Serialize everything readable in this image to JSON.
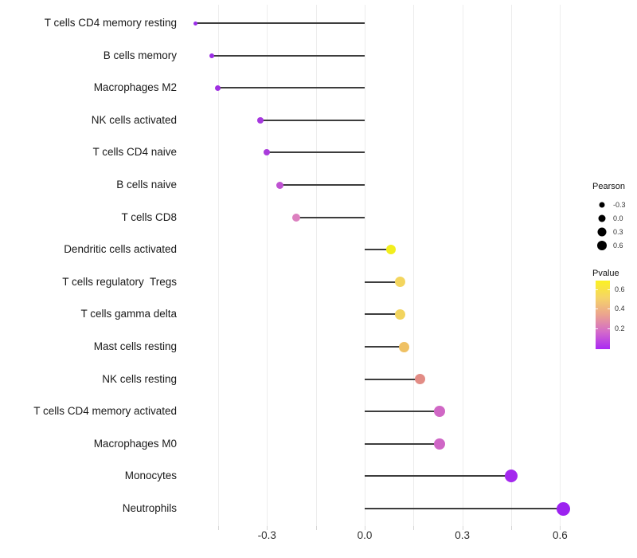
{
  "figure": {
    "background": "#ffffff",
    "stem_color": "#3d3d3d",
    "grid_color": "#ededed",
    "text_color": "#333333"
  },
  "chart_data": {
    "type": "scatter",
    "variant": "lollipop",
    "title": "",
    "xlabel": "",
    "ylabel": "",
    "xlim": [
      -0.56,
      0.69
    ],
    "grid": "vertical-only",
    "gridline_values": [
      -0.45,
      -0.3,
      -0.15,
      0.0,
      0.15,
      0.3,
      0.45,
      0.6
    ],
    "x_ticks": [
      {
        "value": -0.3,
        "label": "-0.3"
      },
      {
        "value": 0.0,
        "label": "0.0"
      },
      {
        "value": 0.3,
        "label": "0.3"
      },
      {
        "value": 0.6,
        "label": "0.6"
      }
    ],
    "size_encodes": "Pearson",
    "color_encodes": "Pvalue",
    "points": [
      {
        "label": "T cells CD4 memory resting",
        "pearson": -0.52,
        "color": "#9B2DE9",
        "size": 5
      },
      {
        "label": "B cells memory",
        "pearson": -0.47,
        "color": "#9C2EE5",
        "size": 6
      },
      {
        "label": "Macrophages M2",
        "pearson": -0.45,
        "color": "#A030E2",
        "size": 7
      },
      {
        "label": "NK cells activated",
        "pearson": -0.32,
        "color": "#A637DF",
        "size": 8
      },
      {
        "label": "T cells CD4 naive",
        "pearson": -0.3,
        "color": "#A93BDB",
        "size": 8
      },
      {
        "label": "B cells naive",
        "pearson": -0.26,
        "color": "#BF52D2",
        "size": 9
      },
      {
        "label": "T cells CD8",
        "pearson": -0.21,
        "color": "#DC80BF",
        "size": 10
      },
      {
        "label": "Dendritic cells activated",
        "pearson": 0.08,
        "color": "#F2EE1E",
        "size": 12
      },
      {
        "label": "T cells regulatory  Tregs",
        "pearson": 0.11,
        "color": "#F3D55E",
        "size": 13
      },
      {
        "label": "T cells gamma delta",
        "pearson": 0.11,
        "color": "#F2D45E",
        "size": 13
      },
      {
        "label": "Mast cells resting",
        "pearson": 0.12,
        "color": "#EFC164",
        "size": 13
      },
      {
        "label": "NK cells resting",
        "pearson": 0.17,
        "color": "#E28C85",
        "size": 13
      },
      {
        "label": "T cells CD4 memory activated",
        "pearson": 0.23,
        "color": "#D067C5",
        "size": 14
      },
      {
        "label": "Macrophages M0",
        "pearson": 0.23,
        "color": "#CF66C6",
        "size": 14
      },
      {
        "label": "Monocytes",
        "pearson": 0.45,
        "color": "#A428EE",
        "size": 16
      },
      {
        "label": "Neutrophils",
        "pearson": 0.61,
        "color": "#9C22F0",
        "size": 17
      }
    ]
  },
  "legends": {
    "pearson": {
      "title": "Pearson",
      "dot_color": "#000000",
      "entries": [
        {
          "label": "-0.3",
          "size": 7
        },
        {
          "label": "0.0",
          "size": 9
        },
        {
          "label": "0.3",
          "size": 11
        },
        {
          "label": "0.6",
          "size": 12
        }
      ]
    },
    "pvalue": {
      "title": "Pvalue",
      "gradient_top_to_bottom": [
        "#FBF122",
        "#F5D468",
        "#EBA38F",
        "#D36ACA",
        "#AA28F4"
      ],
      "ticks": [
        {
          "label": "0.6",
          "frac_from_top": 0.128
        },
        {
          "label": "0.4",
          "frac_from_top": 0.407
        },
        {
          "label": "0.2",
          "frac_from_top": 0.698
        }
      ]
    }
  }
}
